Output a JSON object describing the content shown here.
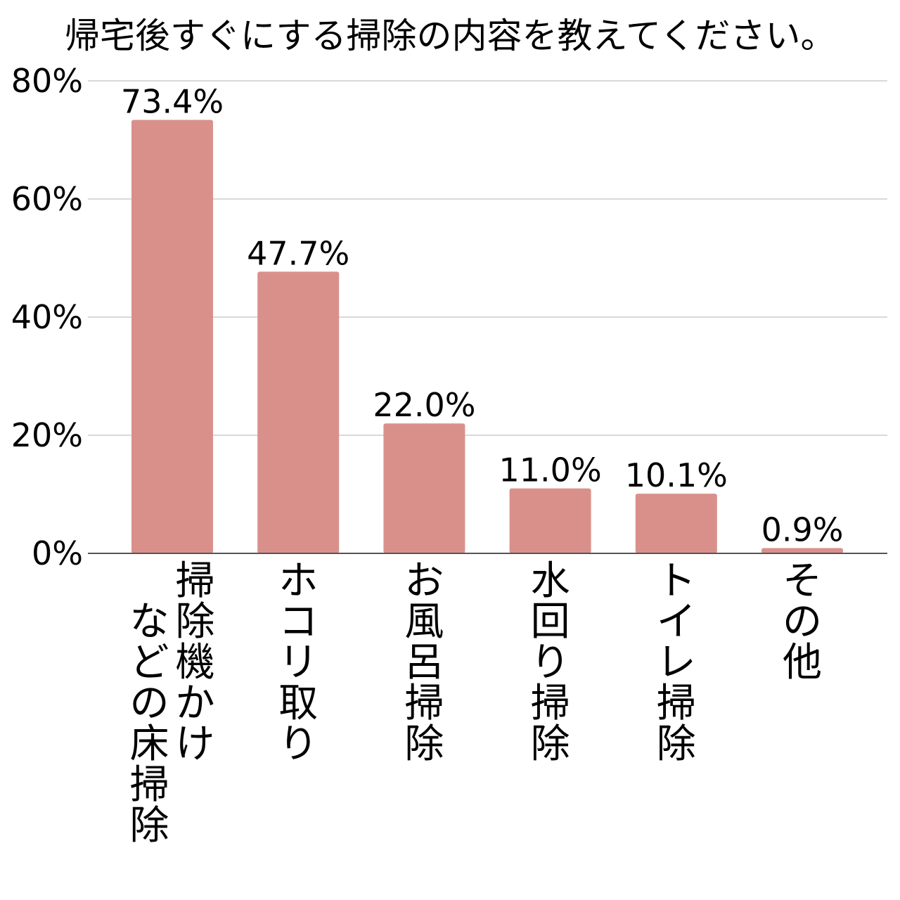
{
  "chart_data": {
    "type": "bar",
    "title": "帰宅後すぐにする掃除の内容を教えてください。",
    "categories": [
      [
        "掃除機かけ",
        "などの床掃除"
      ],
      [
        "ホコリ取り"
      ],
      [
        "お風呂掃除"
      ],
      [
        "水回り掃除"
      ],
      [
        "トイレ掃除"
      ],
      [
        "その他"
      ]
    ],
    "values": [
      73.4,
      47.7,
      22.0,
      11.0,
      10.1,
      0.9
    ],
    "value_labels": [
      "73.4%",
      "47.7%",
      "22.0%",
      "11.0%",
      "10.1%",
      "0.9%"
    ],
    "y_ticks": [
      0,
      20,
      40,
      60,
      80
    ],
    "y_tick_labels": [
      "0%",
      "20%",
      "40%",
      "60%",
      "80%"
    ],
    "ylim": [
      0,
      80
    ],
    "grid": true,
    "bar_color": "#d9908b",
    "grid_color": "#d9d9d9",
    "axis_color": "#555555"
  }
}
